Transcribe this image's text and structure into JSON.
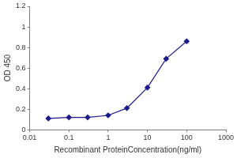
{
  "chart_data": {
    "type": "line",
    "x_label": "Recombinant ProteinConcentration(ng/ml)",
    "y_label": "OD 450",
    "x": [
      0.03,
      0.1,
      0.3,
      1,
      3,
      10,
      30,
      100
    ],
    "values": [
      0.11,
      0.12,
      0.12,
      0.14,
      0.21,
      0.41,
      0.69,
      0.86
    ],
    "color": "#1a1a8c",
    "marker": "diamond",
    "log": "x",
    "xlim": [
      0.01,
      1000
    ],
    "xticks": [
      0.01,
      0.1,
      1,
      10,
      100,
      1000
    ],
    "ylim": [
      0,
      1.2
    ],
    "yticks": [
      0,
      0.2,
      0.4,
      0.6,
      0.8,
      1,
      1.2
    ],
    "grid": false
  }
}
